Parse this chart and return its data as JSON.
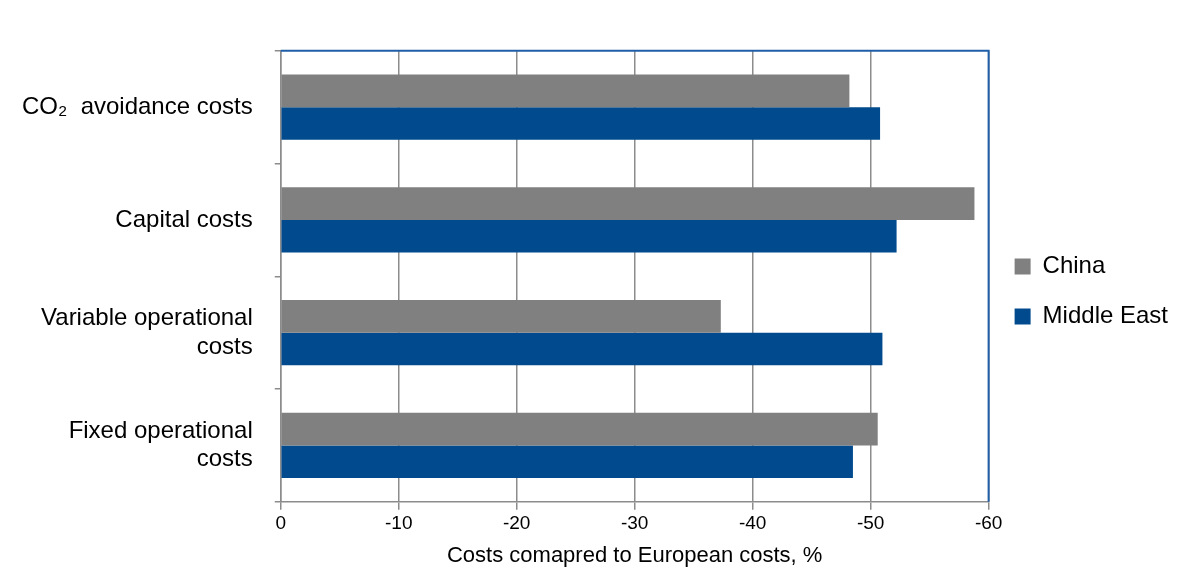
{
  "chart_data": {
    "type": "bar",
    "orientation": "horizontal",
    "xlabel": "Costs comapred to European costs, %",
    "categories": [
      "CO₂  avoidance costs",
      "Capital costs",
      "Variable operational costs",
      "Fixed operational costs"
    ],
    "series": [
      {
        "name": "China",
        "color": "#808080",
        "values": [
          -48.2,
          -58.8,
          -37.3,
          -50.6
        ]
      },
      {
        "name": "Middle East",
        "color": "#004a8d",
        "values": [
          -50.8,
          -52.2,
          -51.0,
          -48.5
        ]
      }
    ],
    "xlim": [
      0,
      -60
    ],
    "xticks": [
      0,
      -10,
      -20,
      -30,
      -40,
      -50,
      -60
    ],
    "grid": "x",
    "legend": "right"
  }
}
